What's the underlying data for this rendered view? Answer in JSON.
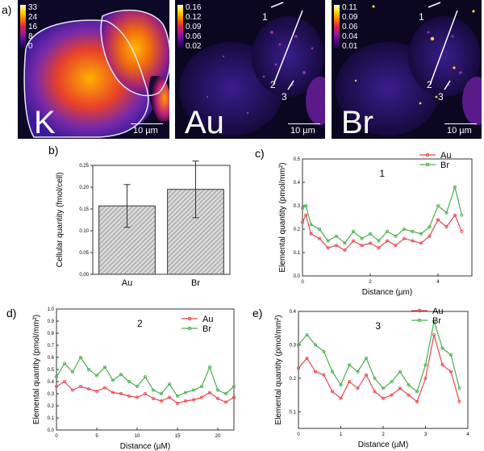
{
  "panel_labels": {
    "a": "a)",
    "b": "b)",
    "c": "c)",
    "d": "d)",
    "e": "e)"
  },
  "maps": [
    {
      "element": "K",
      "scale_bar": "10 µm",
      "colorbar_ticks": [
        "33",
        "24",
        "16",
        "8",
        "0"
      ],
      "line_labels": []
    },
    {
      "element": "Au",
      "scale_bar": "10 µm",
      "colorbar_ticks": [
        "0.16",
        "0.12",
        "0.09",
        "0.06",
        "0.02"
      ],
      "line_labels": [
        "1",
        "2",
        "3"
      ]
    },
    {
      "element": "Br",
      "scale_bar": "10 µm",
      "colorbar_ticks": [
        "0.11",
        "0.09",
        "0.06",
        "0.04",
        "0.01"
      ],
      "line_labels": [
        "1",
        "2",
        "3"
      ]
    }
  ],
  "chart_data": [
    {
      "id": "b",
      "type": "bar",
      "categories": [
        "Au",
        "Br"
      ],
      "values": [
        0.157,
        0.195
      ],
      "errors": [
        0.049,
        0.065
      ],
      "ylabel": "Cellular quantity (fmol/cell)",
      "ylim": [
        0,
        0.25
      ],
      "yticks": [
        "0.00",
        "0.05",
        "0.10",
        "0.15",
        "0.20",
        "0.25"
      ]
    },
    {
      "id": "c",
      "type": "line",
      "title": "1",
      "xlabel": "Distance (µm)",
      "ylabel": "Elemental quantity (pmol/mm²)",
      "xlim": [
        0,
        5
      ],
      "ylim": [
        0,
        0.5
      ],
      "xticks": [
        "0",
        "2",
        "4"
      ],
      "yticks": [
        "0.0",
        "0.1",
        "0.2",
        "0.3",
        "0.4",
        "0.5"
      ],
      "series": [
        {
          "name": "Au",
          "color": "#e8474f",
          "x": [
            0,
            0.1,
            0.25,
            0.5,
            0.75,
            1,
            1.25,
            1.5,
            1.75,
            2,
            2.25,
            2.5,
            2.75,
            3,
            3.25,
            3.5,
            3.75,
            4,
            4.25,
            4.5,
            4.7
          ],
          "values": [
            0.23,
            0.26,
            0.18,
            0.16,
            0.12,
            0.13,
            0.11,
            0.15,
            0.13,
            0.14,
            0.12,
            0.15,
            0.13,
            0.16,
            0.15,
            0.14,
            0.17,
            0.24,
            0.21,
            0.26,
            0.19
          ]
        },
        {
          "name": "Br",
          "color": "#4caf50",
          "x": [
            0,
            0.1,
            0.25,
            0.5,
            0.75,
            1,
            1.25,
            1.5,
            1.75,
            2,
            2.25,
            2.5,
            2.75,
            3,
            3.25,
            3.5,
            3.75,
            4,
            4.25,
            4.5,
            4.7
          ],
          "values": [
            0.29,
            0.3,
            0.22,
            0.2,
            0.15,
            0.17,
            0.14,
            0.19,
            0.16,
            0.18,
            0.15,
            0.19,
            0.17,
            0.2,
            0.19,
            0.18,
            0.21,
            0.3,
            0.27,
            0.38,
            0.26
          ]
        }
      ]
    },
    {
      "id": "d",
      "type": "line",
      "title": "2",
      "xlabel": "Distance (µM)",
      "ylabel": "Elemental quantity (pmol/mm²)",
      "xlim": [
        0,
        22
      ],
      "ylim": [
        0,
        1.0
      ],
      "xticks": [
        "0",
        "5",
        "10",
        "15",
        "20"
      ],
      "yticks": [
        "0.0",
        "0.1",
        "0.2",
        "0.3",
        "0.4",
        "0.5",
        "0.6",
        "0.7",
        "0.8",
        "0.9",
        "1.0"
      ],
      "series": [
        {
          "name": "Au",
          "color": "#e8474f",
          "x": [
            0,
            1,
            2,
            3,
            4,
            5,
            6,
            7,
            8,
            9,
            10,
            11,
            12,
            13,
            14,
            15,
            16,
            17,
            18,
            19,
            20,
            21,
            22
          ],
          "values": [
            0.36,
            0.4,
            0.33,
            0.36,
            0.34,
            0.32,
            0.35,
            0.31,
            0.3,
            0.28,
            0.27,
            0.3,
            0.26,
            0.24,
            0.27,
            0.22,
            0.24,
            0.25,
            0.27,
            0.31,
            0.26,
            0.23,
            0.27
          ]
        },
        {
          "name": "Br",
          "color": "#4caf50",
          "x": [
            0,
            1,
            2,
            3,
            4,
            5,
            6,
            7,
            8,
            9,
            10,
            11,
            12,
            13,
            14,
            15,
            16,
            17,
            18,
            19,
            20,
            21,
            22
          ],
          "values": [
            0.44,
            0.55,
            0.48,
            0.6,
            0.5,
            0.45,
            0.52,
            0.41,
            0.46,
            0.4,
            0.36,
            0.44,
            0.33,
            0.3,
            0.38,
            0.28,
            0.31,
            0.33,
            0.36,
            0.52,
            0.33,
            0.3,
            0.36
          ]
        }
      ]
    },
    {
      "id": "e",
      "type": "line",
      "title": "3",
      "xlabel": "Distance (µM)",
      "ylabel": "Elemental quantity (pmol/mm²)",
      "xlim": [
        0,
        4
      ],
      "ylim": [
        0.05,
        0.4
      ],
      "xticks": [
        "0",
        "1",
        "2",
        "3",
        "4"
      ],
      "yticks": [
        "0.1",
        "0.2",
        "0.3",
        "0.4"
      ],
      "series": [
        {
          "name": "Au",
          "color": "#e8474f",
          "x": [
            0,
            0.2,
            0.4,
            0.6,
            0.8,
            1,
            1.2,
            1.4,
            1.6,
            1.8,
            2,
            2.2,
            2.4,
            2.6,
            2.8,
            3,
            3.2,
            3.4,
            3.6,
            3.8
          ],
          "values": [
            0.23,
            0.26,
            0.22,
            0.21,
            0.16,
            0.14,
            0.19,
            0.17,
            0.21,
            0.16,
            0.14,
            0.15,
            0.17,
            0.15,
            0.13,
            0.2,
            0.33,
            0.24,
            0.22,
            0.13
          ]
        },
        {
          "name": "Br",
          "color": "#4caf50",
          "x": [
            0,
            0.2,
            0.4,
            0.6,
            0.8,
            1,
            1.2,
            1.4,
            1.6,
            1.8,
            2,
            2.2,
            2.4,
            2.6,
            2.8,
            3,
            3.2,
            3.4,
            3.6,
            3.8
          ],
          "values": [
            0.3,
            0.33,
            0.3,
            0.28,
            0.22,
            0.18,
            0.24,
            0.22,
            0.26,
            0.2,
            0.17,
            0.19,
            0.22,
            0.18,
            0.16,
            0.24,
            0.37,
            0.29,
            0.27,
            0.17
          ]
        }
      ]
    }
  ]
}
